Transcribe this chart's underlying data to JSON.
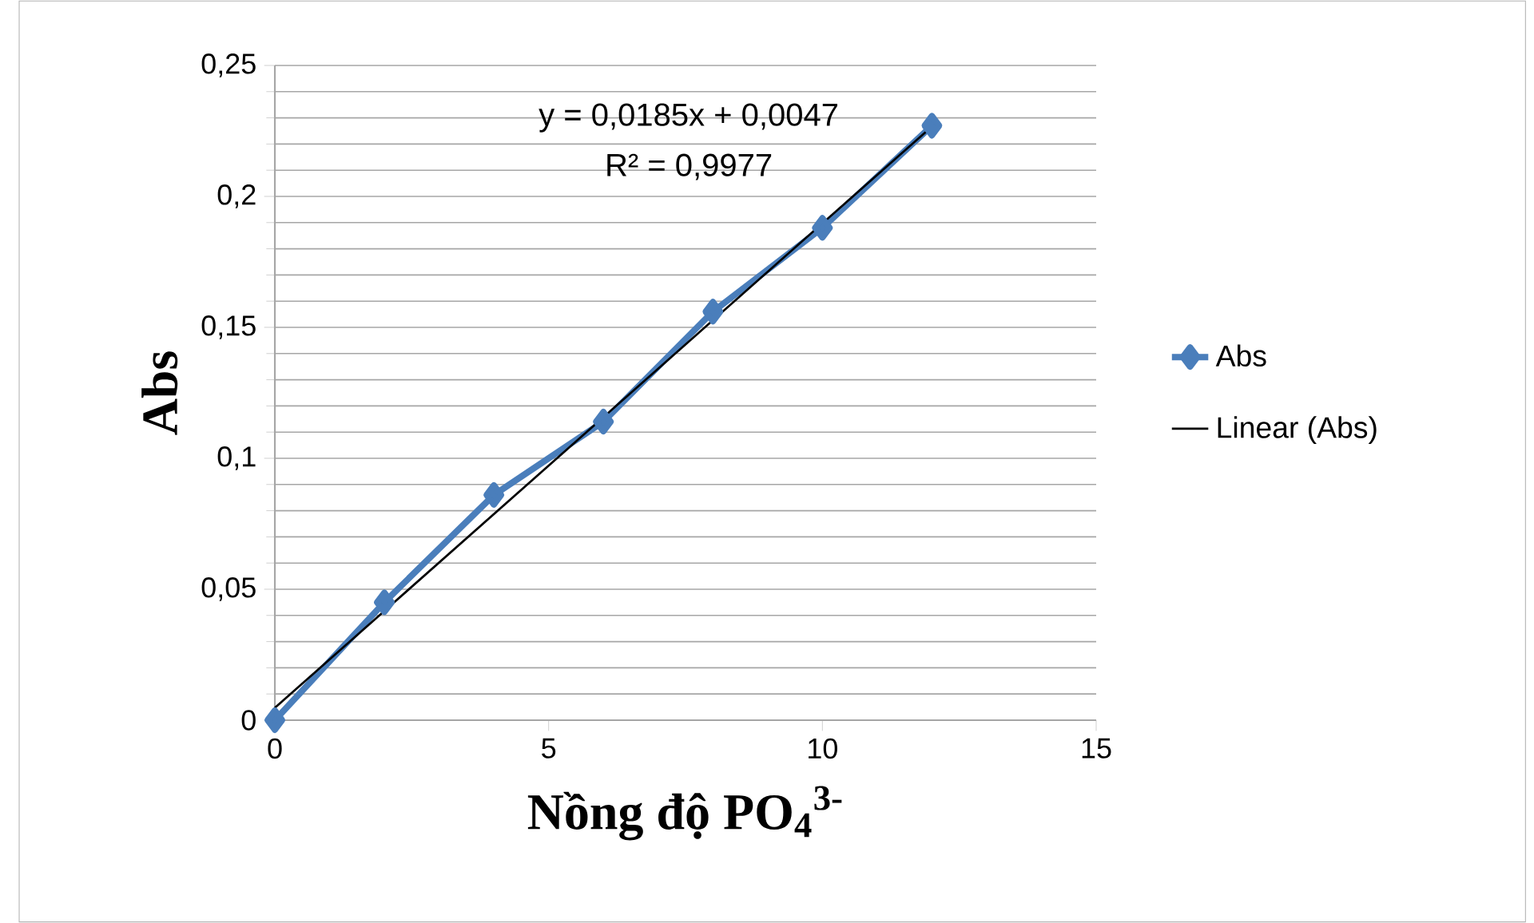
{
  "chart_data": {
    "type": "line",
    "xlabel": "**Nồng độ PO$_{4}$$^{3-}$**",
    "ylabel": "**Abs**",
    "xlim": [
      0,
      15
    ],
    "xticks": [
      0,
      5,
      10,
      15
    ],
    "ylim": [
      0,
      0.25
    ],
    "yticks": [
      0,
      {
        "value": 0.05,
        "label": "0,05"
      },
      {
        "value": 0.1,
        "label": "0,1"
      },
      {
        "value": 0.15,
        "label": "0,15"
      },
      {
        "value": 0.2,
        "label": "0,2"
      },
      {
        "value": 0.25,
        "label": "0,25"
      }
    ],
    "grid": "y",
    "legend": "right",
    "annotations": [
      "y = 0,0185x + 0,0047",
      "R² = 0,9977"
    ],
    "series": [
      {
        "name": "Abs",
        "color": "#4a7ebb",
        "marker": "diamond",
        "x": [
          0,
          2,
          4,
          6,
          8,
          10,
          12
        ],
        "values": [
          0,
          0.045,
          0.086,
          0.114,
          0.156,
          0.188,
          0.227
        ]
      },
      {
        "name": "Linear (Abs)",
        "color": "#000000",
        "marker": "none",
        "x": [
          0,
          12
        ],
        "values": [
          0.0047,
          0.2267
        ]
      }
    ]
  }
}
